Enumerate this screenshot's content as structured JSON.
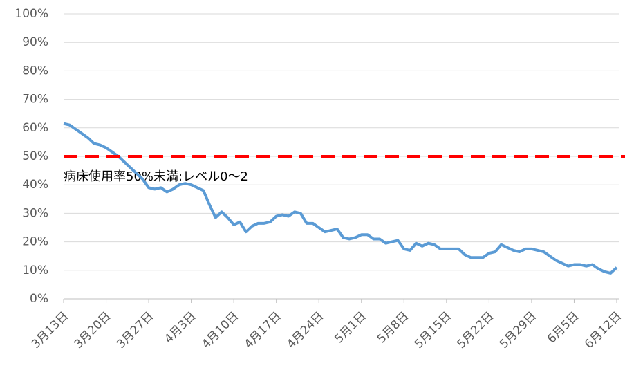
{
  "chart_data": {
    "type": "line",
    "categories": [
      "3月13日",
      null,
      null,
      null,
      null,
      null,
      null,
      "3月20日",
      null,
      null,
      null,
      null,
      null,
      null,
      "3月27日",
      null,
      null,
      null,
      null,
      null,
      null,
      "4月3日",
      null,
      null,
      null,
      null,
      null,
      null,
      "4月10日",
      null,
      null,
      null,
      null,
      null,
      null,
      "4月17日",
      null,
      null,
      null,
      null,
      null,
      null,
      "4月24日",
      null,
      null,
      null,
      null,
      null,
      null,
      "5月1日",
      null,
      null,
      null,
      null,
      null,
      null,
      "5月8日",
      null,
      null,
      null,
      null,
      null,
      null,
      "5月15日",
      null,
      null,
      null,
      null,
      null,
      null,
      "5月22日",
      null,
      null,
      null,
      null,
      null,
      null,
      "5月29日",
      null,
      null,
      null,
      null,
      null,
      null,
      "6月5日",
      null,
      null,
      null,
      null,
      null,
      null,
      "6月12日"
    ],
    "values": [
      61.5,
      61,
      59.5,
      58,
      56.5,
      54.5,
      54,
      53,
      51.5,
      50,
      48,
      46,
      44,
      42,
      39,
      38.5,
      39,
      37.5,
      38.5,
      40,
      40.5,
      40,
      39,
      38,
      33,
      28.5,
      30.5,
      28.5,
      26,
      27,
      23.5,
      25.5,
      26.5,
      26.5,
      27,
      29,
      29.5,
      29,
      30.5,
      30,
      26.5,
      26.5,
      25,
      23.5,
      24,
      24.5,
      21.5,
      21,
      21.5,
      22.5,
      22.5,
      21,
      21,
      19.5,
      20,
      20.5,
      17.5,
      17,
      19.5,
      18.5,
      19.5,
      19,
      17.5,
      17.5,
      17.5,
      17.5,
      15.5,
      14.5,
      14.5,
      14.5,
      16,
      16.5,
      19,
      18,
      17,
      16.5,
      17.5,
      17.5,
      17,
      16.5,
      15,
      13.5,
      12.5,
      11.5,
      12,
      12,
      11.5,
      12,
      10.5,
      9.5,
      9,
      11
    ],
    "color": "#5b9bd5",
    "ylim": [
      0,
      100
    ],
    "yticks": [
      {
        "value": 0,
        "label": "0%"
      },
      {
        "value": 10,
        "label": "10%"
      },
      {
        "value": 20,
        "label": "20%"
      },
      {
        "value": 30,
        "label": "30%"
      },
      {
        "value": 40,
        "label": "40%"
      },
      {
        "value": 50,
        "label": "50%"
      },
      {
        "value": 60,
        "label": "60%"
      },
      {
        "value": 70,
        "label": "70%"
      },
      {
        "value": 80,
        "label": "80%"
      },
      {
        "value": 90,
        "label": "90%"
      },
      {
        "value": 100,
        "label": "100%"
      }
    ],
    "grid": true,
    "reference_line": {
      "value": 50,
      "label": "病床使用率50%未満:レベル0～2",
      "color": "#ff0000"
    }
  }
}
